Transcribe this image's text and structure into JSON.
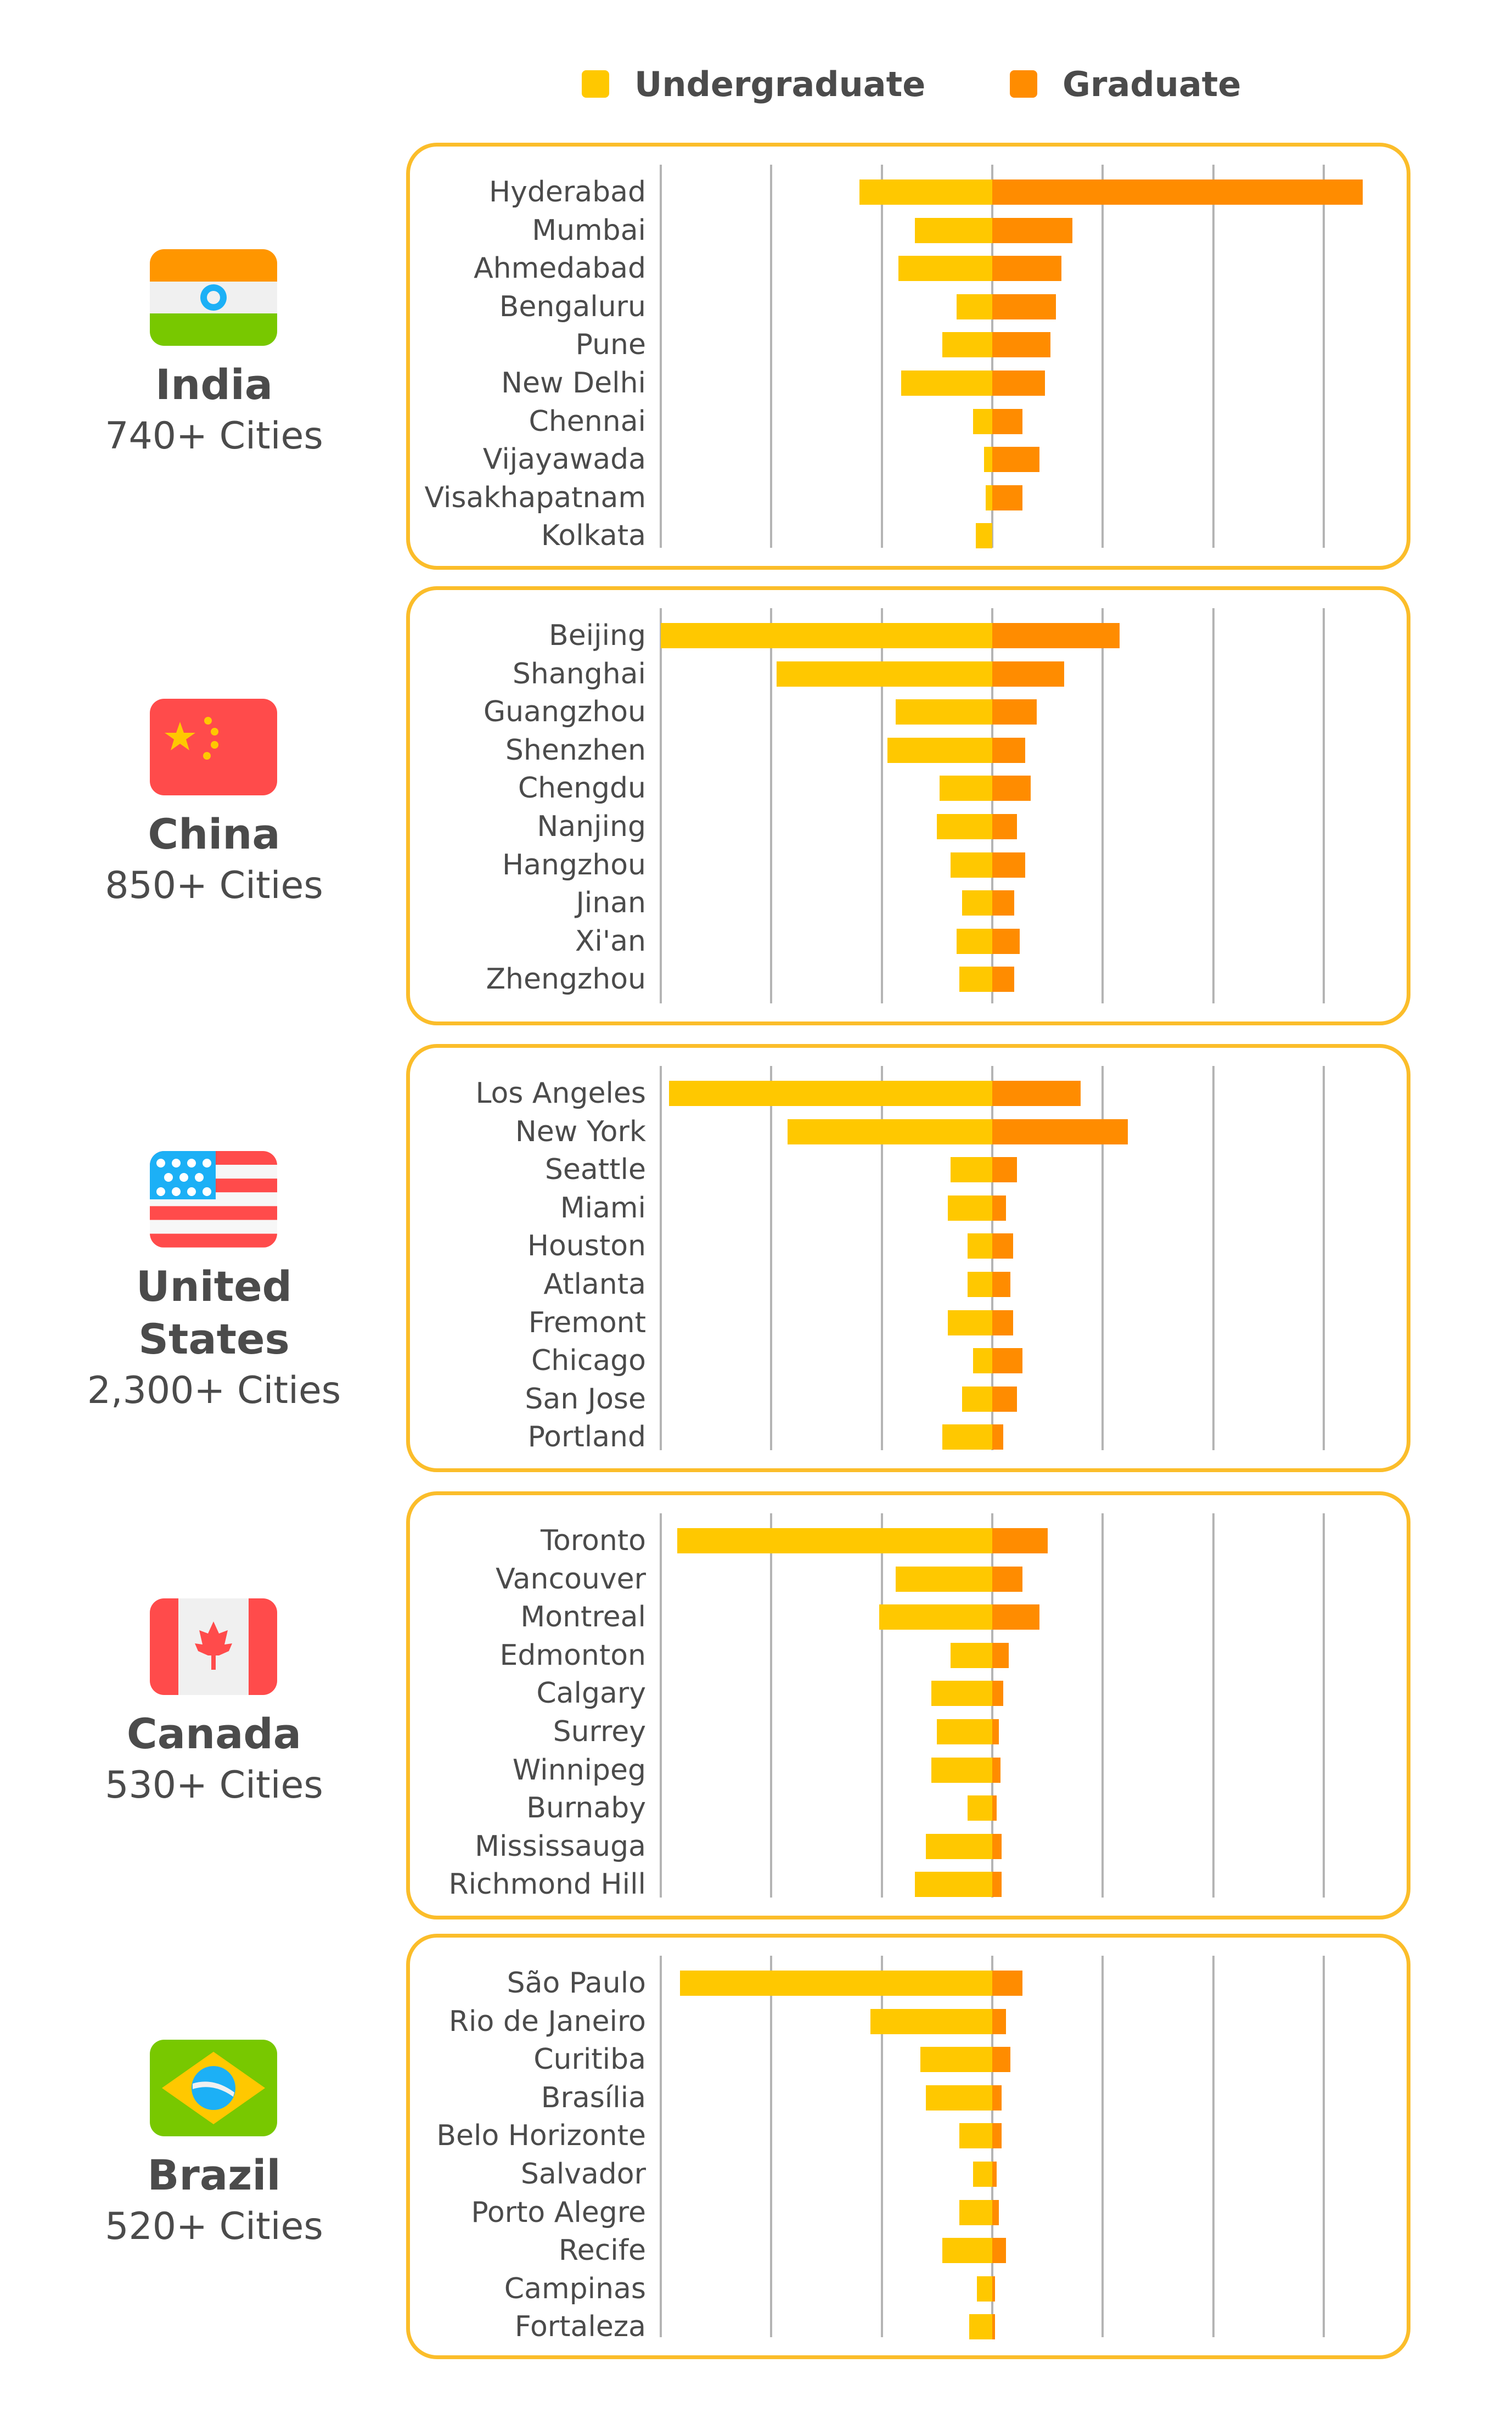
{
  "legend": {
    "undergraduate": "Undergraduate",
    "graduate": "Graduate",
    "undergraduate_color": "#ffc800",
    "graduate_color": "#ff8c00"
  },
  "flag_icons": [
    "india-flag-icon",
    "china-flag-icon",
    "united-states-flag-icon",
    "canada-flag-icon",
    "brazil-flag-icon"
  ],
  "chart_data": {
    "type": "bar",
    "orientation": "horizontal-diverging",
    "xlim": [
      -6,
      6
    ],
    "grid": true,
    "legend_position": "top",
    "series_names": [
      "Undergraduate",
      "Graduate"
    ],
    "groups": [
      {
        "country": "India",
        "cities_label": "740+ Cities",
        "categories": [
          "Hyderabad",
          "Mumbai",
          "Ahmedabad",
          "Bengaluru",
          "Pune",
          "New Delhi",
          "Chennai",
          "Vijayawada",
          "Visakhapatnam",
          "Kolkata"
        ],
        "undergraduate": [
          2.4,
          1.4,
          1.7,
          0.65,
          0.9,
          1.65,
          0.35,
          0.15,
          0.12,
          0.3
        ],
        "graduate": [
          6.7,
          1.45,
          1.25,
          1.15,
          1.05,
          0.95,
          0.55,
          0.85,
          0.55,
          0.0
        ]
      },
      {
        "country": "China",
        "cities_label": "850+ Cities",
        "categories": [
          "Beijing",
          "Shanghai",
          "Guangzhou",
          "Shenzhen",
          "Chengdu",
          "Nanjing",
          "Hangzhou",
          "Jinan",
          "Xi'an",
          "Zhengzhou"
        ],
        "undergraduate": [
          6.0,
          3.9,
          1.75,
          1.9,
          0.95,
          1.0,
          0.75,
          0.55,
          0.65,
          0.6
        ],
        "graduate": [
          2.3,
          1.3,
          0.8,
          0.6,
          0.7,
          0.45,
          0.6,
          0.4,
          0.5,
          0.4
        ]
      },
      {
        "country": "United States",
        "cities_label": "2,300+ Cities",
        "categories": [
          "Los Angeles",
          "New York",
          "Seattle",
          "Miami",
          "Houston",
          "Atlanta",
          "Fremont",
          "Chicago",
          "San Jose",
          "Portland"
        ],
        "undergraduate": [
          5.85,
          3.7,
          0.75,
          0.8,
          0.45,
          0.45,
          0.8,
          0.35,
          0.55,
          0.9
        ],
        "graduate": [
          1.6,
          2.45,
          0.45,
          0.25,
          0.38,
          0.33,
          0.38,
          0.55,
          0.45,
          0.2
        ]
      },
      {
        "country": "Canada",
        "cities_label": "530+ Cities",
        "categories": [
          "Toronto",
          "Vancouver",
          "Montreal",
          "Edmonton",
          "Calgary",
          "Surrey",
          "Winnipeg",
          "Burnaby",
          "Mississauga",
          "Richmond Hill"
        ],
        "undergraduate": [
          5.7,
          1.75,
          2.05,
          0.75,
          1.1,
          1.0,
          1.1,
          0.45,
          1.2,
          1.4
        ],
        "graduate": [
          1.0,
          0.55,
          0.85,
          0.3,
          0.2,
          0.12,
          0.15,
          0.08,
          0.17,
          0.17
        ]
      },
      {
        "country": "Brazil",
        "cities_label": "520+ Cities",
        "categories": [
          "São Paulo",
          "Rio de Janeiro",
          "Curitiba",
          "Brasília",
          "Belo Horizonte",
          "Salvador",
          "Porto Alegre",
          "Recife",
          "Campinas",
          "Fortaleza"
        ],
        "undergraduate": [
          5.65,
          2.2,
          1.3,
          1.2,
          0.6,
          0.35,
          0.6,
          0.9,
          0.28,
          0.42
        ],
        "graduate": [
          0.55,
          0.25,
          0.33,
          0.17,
          0.17,
          0.08,
          0.12,
          0.25,
          0.05,
          0.05
        ]
      }
    ]
  }
}
